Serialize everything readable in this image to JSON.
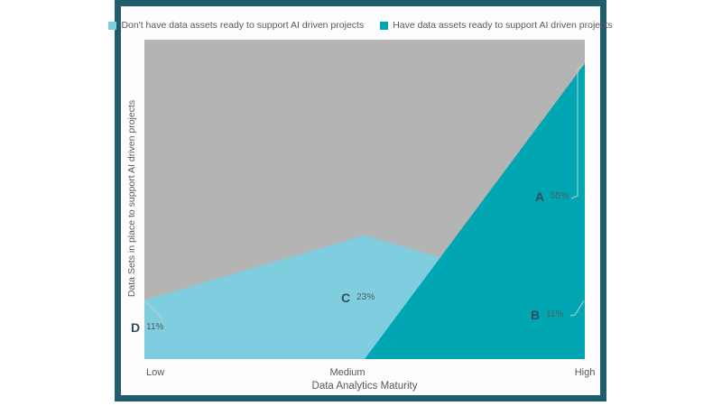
{
  "card": {
    "background": "#FDFDFD",
    "border_color": "#205E6E"
  },
  "legend": {
    "items": [
      {
        "label": "Don't have data assets ready to support AI driven projects",
        "swatch_color": "#7FCEE0"
      },
      {
        "label": "Have data assets ready to support AI driven projects",
        "swatch_color": "#00A7B2"
      }
    ]
  },
  "chart_data": {
    "type": "area",
    "title": "",
    "categories": [
      "Low",
      "Medium",
      "High"
    ],
    "series": [
      {
        "name": "Don't have data assets ready to support AI driven projects",
        "color": "#7FCEE0",
        "values": [
          11,
          23,
          11
        ]
      },
      {
        "name": "Have data assets ready to support AI driven projects",
        "color": "#00A7B2",
        "values": [
          0,
          0,
          55
        ]
      }
    ],
    "xlabel": "Data Analytics Maturity",
    "ylabel": "Data Sets in place to support AI driven projects",
    "ylim": [
      0,
      59.4
    ],
    "grid": false,
    "legend_position": "top",
    "plot_background": "#B4B4B4",
    "leader_line_color": "#C6CCCC",
    "annotations": [
      {
        "letter": "A",
        "value": 55,
        "value_label": "55%",
        "series": "Have data assets ready to support AI driven projects",
        "category": "High"
      },
      {
        "letter": "B",
        "value": 11,
        "value_label": "11%",
        "series": "Don't have data assets ready to support AI driven projects",
        "category": "High"
      },
      {
        "letter": "C",
        "value": 23,
        "value_label": "23%",
        "series": "Don't have data assets ready to support AI driven projects",
        "category": "Medium"
      },
      {
        "letter": "D",
        "value": 11,
        "value_label": "11%",
        "series": "Don't have data assets ready to support AI driven projects",
        "category": "Low"
      }
    ]
  }
}
